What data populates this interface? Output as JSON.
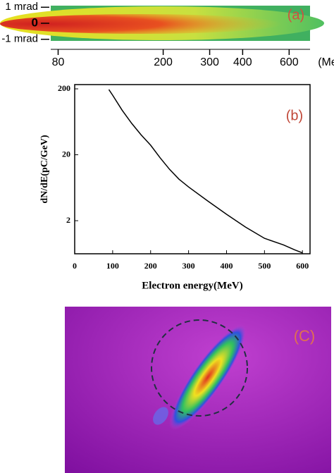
{
  "chart_data": [
    {
      "type": "image",
      "panel_label": "(a)",
      "x_unit": "(MeV)",
      "xscale": "log",
      "xlim": [
        75,
        720
      ],
      "xticks": [
        80,
        200,
        300,
        400,
        600
      ],
      "ylim": [
        -1.1,
        1.1
      ],
      "yticks": [
        {
          "value": 1,
          "label": "1 mrad"
        },
        0,
        {
          "value": -1,
          "label": "-1 mrad"
        }
      ]
    },
    {
      "type": "line",
      "panel_label": "(b)",
      "ylabel": "dN/dE(pC/GeV)",
      "xlabel": "Electron energy(MeV)",
      "yscale": "log",
      "xlim": [
        0,
        620
      ],
      "ylim": [
        0.63,
        232
      ],
      "xticks": [
        0,
        100,
        200,
        300,
        400,
        500,
        600
      ],
      "yticks": [
        2,
        20,
        200
      ],
      "series": [
        {
          "color": "#000000",
          "x": [
            90,
            100,
            125,
            150,
            175,
            200,
            225,
            250,
            275,
            300,
            350,
            400,
            450,
            500,
            550,
            580,
            600
          ],
          "values": [
            195,
            160,
            95,
            60,
            40,
            28,
            18,
            12,
            8.5,
            6.5,
            4,
            2.5,
            1.6,
            1.08,
            0.86,
            0.72,
            0.65
          ]
        }
      ]
    },
    {
      "type": "image",
      "panel_label": "(C)"
    }
  ]
}
